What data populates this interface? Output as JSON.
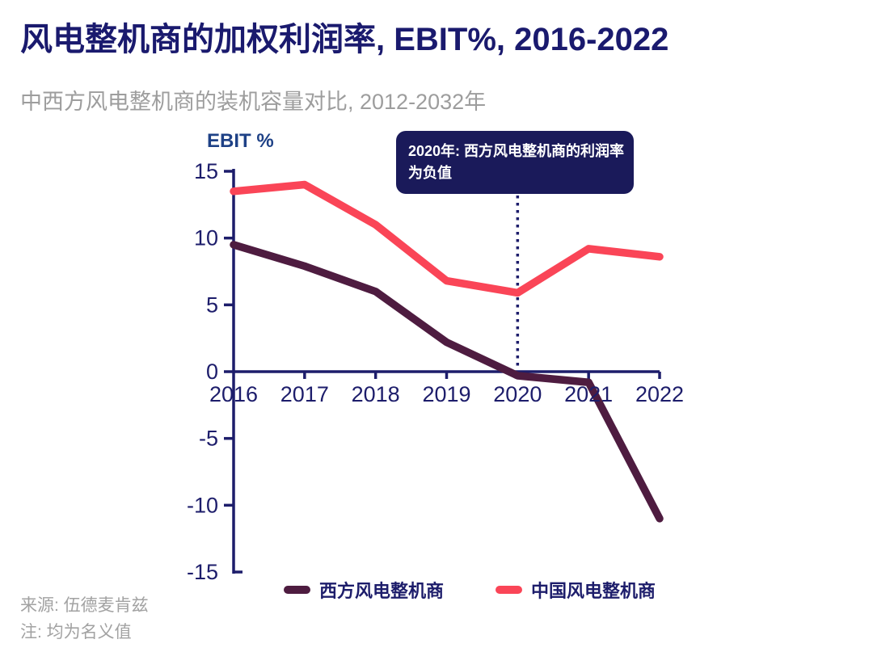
{
  "header": {
    "title": "风电整机商的加权利润率, EBIT%, 2016-2022",
    "subtitle": "中西方风电整机商的装机容量对比, 2012-2032年"
  },
  "chart_data": {
    "type": "line",
    "title": "风电整机商的加权利润率, EBIT%, 2016-2022",
    "y_axis_title": "EBIT %",
    "x": [
      2016,
      2017,
      2018,
      2019,
      2020,
      2021,
      2022
    ],
    "y_ticks": [
      15,
      10,
      5,
      0,
      -5,
      -10,
      -15
    ],
    "ylim": [
      -15,
      15
    ],
    "grid": false,
    "legend_position": "bottom",
    "series": [
      {
        "name": "西方风电整机商",
        "color": "#4e1c40",
        "values": [
          9.5,
          7.9,
          6.0,
          2.2,
          -0.3,
          -0.8,
          -11.0
        ]
      },
      {
        "name": "中国风电整机商",
        "color": "#fa4557",
        "values": [
          13.5,
          14.0,
          11.0,
          6.8,
          5.9,
          9.2,
          8.6
        ]
      }
    ],
    "annotation": {
      "x": 2020,
      "line1": "2020年: 西方风电整机商的利润率",
      "line2": "为负值"
    }
  },
  "legend": {
    "items": [
      {
        "label": "西方风电整机商",
        "color": "#4e1c40"
      },
      {
        "label": "中国风电整机商",
        "color": "#fa4557"
      }
    ]
  },
  "footer": {
    "source": "来源: 伍德麦肯兹",
    "note": "注: 均为名义值"
  },
  "colors": {
    "title_navy": "#1a1a6e",
    "axis_navy": "#1d1d6b",
    "y_axis_title_blue": "#1e4186",
    "china_red": "#fa4557",
    "western_plum": "#4e1c40",
    "subtitle_gray": "#9d9d9d",
    "annotation_bg": "#1a1a5a"
  }
}
